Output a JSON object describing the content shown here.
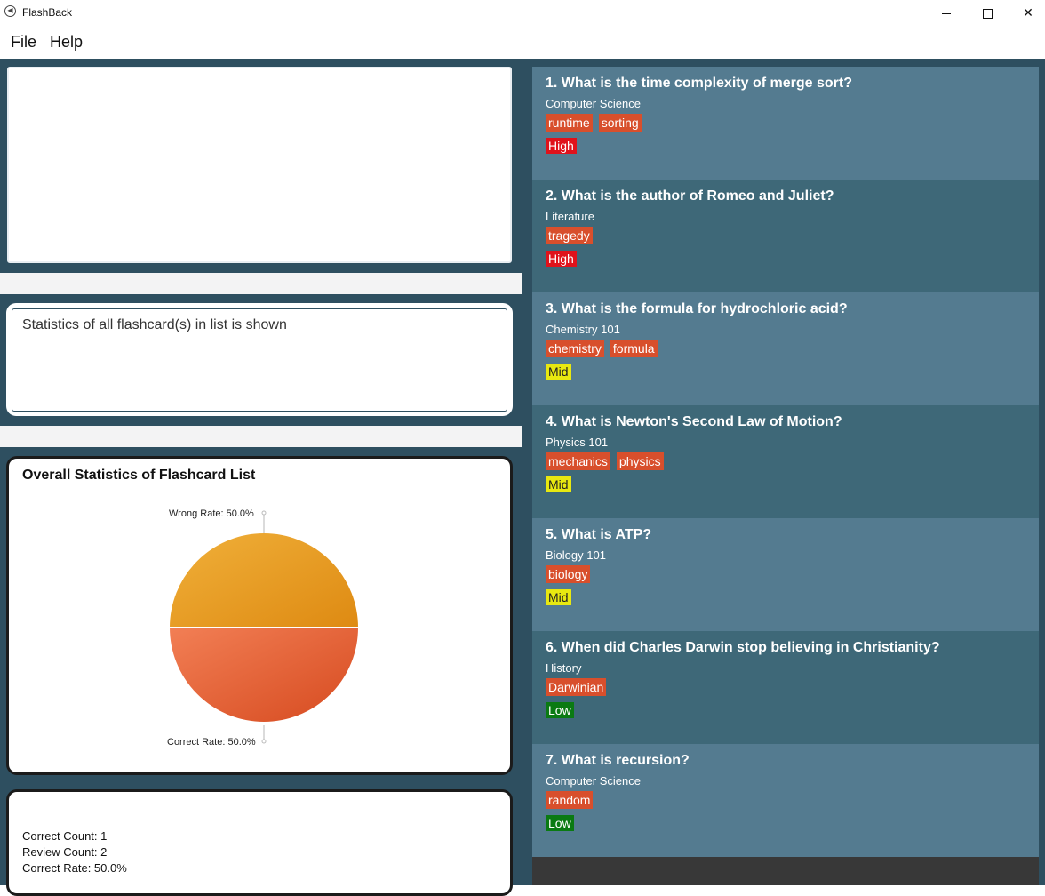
{
  "window": {
    "title": "FlashBack",
    "app_icon": "rewind-icon"
  },
  "menu": {
    "file": "File",
    "help": "Help"
  },
  "command_box": {
    "value": ""
  },
  "result_display": {
    "text": "Statistics of all flashcard(s) in list is shown"
  },
  "statistics": {
    "title": "Overall Statistics of Flashcard List",
    "wrong_label": "Wrong Rate: 50.0%",
    "correct_label": "Correct Rate: 50.0%",
    "correct_count": "Correct Count: 1",
    "review_count": "Review Count: 2",
    "correct_rate": "Correct Rate: 50.0%"
  },
  "chart_data": {
    "type": "pie",
    "title": "Overall Statistics of Flashcard List",
    "slices": [
      {
        "label": "Wrong Rate: 50.0%",
        "value": 50.0,
        "color": "#e8a02a"
      },
      {
        "label": "Correct Rate: 50.0%",
        "value": 50.0,
        "color": "#e4602f"
      }
    ]
  },
  "colors": {
    "panel": "#2e4f60",
    "card_light": "#547b90",
    "card_dark": "#3e6878",
    "tag": "#d84f2c",
    "priority_high": "#e0121b",
    "priority_mid": "#e8e810",
    "priority_low": "#0a7a12"
  },
  "flashcards": [
    {
      "question": "1.  What is the time complexity of merge sort?",
      "category": "Computer Science",
      "tags": [
        "runtime",
        "sorting"
      ],
      "priority": "High"
    },
    {
      "question": "2.  What is the author of Romeo and Juliet?",
      "category": "Literature",
      "tags": [
        "tragedy"
      ],
      "priority": "High"
    },
    {
      "question": "3.  What is the formula for hydrochloric acid?",
      "category": "Chemistry 101",
      "tags": [
        "chemistry",
        "formula"
      ],
      "priority": "Mid"
    },
    {
      "question": "4.  What is Newton's Second Law of Motion?",
      "category": "Physics 101",
      "tags": [
        "mechanics",
        "physics"
      ],
      "priority": "Mid"
    },
    {
      "question": "5.  What is ATP?",
      "category": "Biology 101",
      "tags": [
        "biology"
      ],
      "priority": "Mid"
    },
    {
      "question": "6.  When did Charles Darwin stop believing in Christianity?",
      "category": "History",
      "tags": [
        "Darwinian"
      ],
      "priority": "Low"
    },
    {
      "question": "7.  What is recursion?",
      "category": "Computer Science",
      "tags": [
        "random"
      ],
      "priority": "Low"
    }
  ]
}
